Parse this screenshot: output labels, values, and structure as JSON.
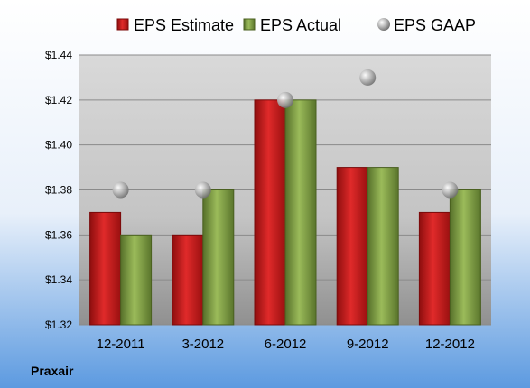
{
  "company": "Praxair",
  "chart_data": {
    "type": "bar",
    "categories": [
      "12-2011",
      "3-2012",
      "6-2012",
      "9-2012",
      "12-2012"
    ],
    "series": [
      {
        "name": "EPS Estimate",
        "kind": "bar",
        "color": "#cc1f1f",
        "values": [
          1.37,
          1.36,
          1.42,
          1.39,
          1.37
        ]
      },
      {
        "name": "EPS Actual",
        "kind": "bar",
        "color": "#7a9a3a",
        "values": [
          1.36,
          1.38,
          1.42,
          1.39,
          1.38
        ]
      },
      {
        "name": "EPS GAAP",
        "kind": "marker",
        "color": "#b0b0b0",
        "values": [
          1.38,
          1.38,
          1.42,
          1.43,
          1.38
        ]
      }
    ],
    "yticks": [
      "$1.32",
      "$1.34",
      "$1.36",
      "$1.38",
      "$1.40",
      "$1.42",
      "$1.44"
    ],
    "ylim": [
      1.32,
      1.44
    ],
    "grid": true,
    "legend_position": "top"
  }
}
